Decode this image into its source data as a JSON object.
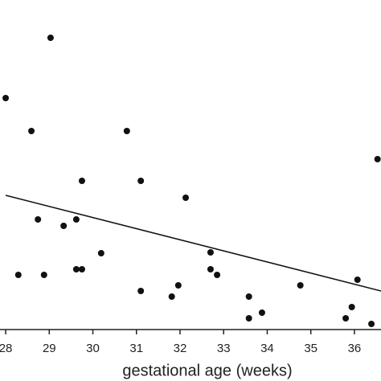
{
  "chart_data": {
    "type": "scatter",
    "x_label": "gestational age (weeks)",
    "x": [
      28.0,
      29.03,
      28.59,
      30.78,
      29.75,
      31.1,
      32.13,
      36.53,
      28.74,
      29.33,
      29.62,
      32.7,
      28.29,
      28.88,
      29.62,
      29.75,
      30.19,
      32.7,
      32.85,
      31.1,
      31.96,
      31.81,
      33.58,
      33.88,
      33.58,
      34.76,
      36.07,
      35.94,
      35.8,
      36.39
    ],
    "values": [
      72,
      90.75,
      61.75,
      61.75,
      46.25,
      46.25,
      41,
      53,
      34.25,
      32.25,
      34.25,
      24,
      17,
      17,
      18.75,
      18.75,
      23.75,
      18.75,
      17,
      12,
      13.75,
      10.25,
      10.25,
      5.25,
      3.5,
      13.75,
      15.5,
      7,
      3.5,
      1.75
    ],
    "color": "#111111",
    "trend_line": {
      "x": [
        28.0,
        36.61
      ],
      "y": [
        41.75,
        12
      ]
    },
    "xlim": [
      27.87,
      36.61
    ],
    "ylim": [
      0,
      100
    ],
    "xticks": [
      28,
      29,
      30,
      31,
      32,
      33,
      34,
      35,
      36
    ]
  }
}
